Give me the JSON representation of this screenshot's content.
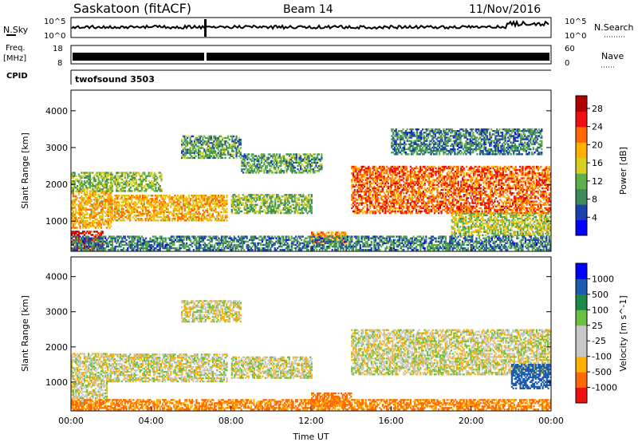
{
  "header": {
    "station": "Saskatoon (fitACF)",
    "beam": "Beam 14",
    "date": "11/Nov/2016"
  },
  "top_panels": {
    "nsky_label": "N.Sky",
    "nsky_ticks": [
      "10^5",
      "10^0"
    ],
    "nsearch_label": "N.Search",
    "nsearch_ticks_right": [
      "10^5",
      "10^0"
    ],
    "freq_label": "Freq.",
    "freq_unit": "[MHz]",
    "freq_ticks": [
      "18",
      "8"
    ],
    "nave_label": "Nave",
    "nave_ticks": [
      "60",
      "0"
    ],
    "cpid_label": "CPID",
    "cpid_value": "twofsound 3503"
  },
  "colors": {
    "power_scale": [
      "#0000ff",
      "#1c3fb0",
      "#3f8a5a",
      "#5fb04a",
      "#d8d020",
      "#ffb000",
      "#ff6a00",
      "#ee1010",
      "#b00000"
    ],
    "velocity_scale": [
      "#0000ff",
      "#1c5cb0",
      "#1e8a4a",
      "#6cc040",
      "#c8c8c8",
      "#c8c8c8",
      "#ffb000",
      "#ff6a00",
      "#ee1010"
    ]
  },
  "chart_data": [
    {
      "type": "heatmap",
      "title": "Power",
      "xlabel": "Time UT",
      "ylabel": "Slant Range [km]",
      "x_ticks": [
        "00:00",
        "04:00",
        "08:00",
        "12:00",
        "16:00",
        "20:00",
        "00:00"
      ],
      "y_ticks": [
        "1000",
        "2000",
        "3000",
        "4000"
      ],
      "ylim": [
        180,
        4560
      ],
      "xlim_hours": [
        0,
        24
      ],
      "colorbar_label": "Power [dB]",
      "colorbar_ticks": [
        "4",
        "8",
        "12",
        "16",
        "20",
        "24",
        "28"
      ],
      "colorbar_range": [
        0,
        30
      ],
      "regions": [
        {
          "t": [
            0.0,
            1.6
          ],
          "r": [
            200,
            700
          ],
          "value": 27
        },
        {
          "t": [
            0.0,
            2.0
          ],
          "r": [
            800,
            1800
          ],
          "value": 18
        },
        {
          "t": [
            0.0,
            4.5
          ],
          "r": [
            1800,
            2300
          ],
          "value": 12
        },
        {
          "t": [
            1.8,
            7.8
          ],
          "r": [
            1000,
            1700
          ],
          "value": 18
        },
        {
          "t": [
            5.5,
            8.5
          ],
          "r": [
            2700,
            3300
          ],
          "value": 10
        },
        {
          "t": [
            8.0,
            12.0
          ],
          "r": [
            1200,
            1700
          ],
          "value": 12
        },
        {
          "t": [
            8.5,
            12.5
          ],
          "r": [
            2300,
            2800
          ],
          "value": 10
        },
        {
          "t": [
            12.0,
            13.8
          ],
          "r": [
            400,
            700
          ],
          "value": 20
        },
        {
          "t": [
            14.0,
            24.0
          ],
          "r": [
            1200,
            2500
          ],
          "value": 22
        },
        {
          "t": [
            16.0,
            23.5
          ],
          "r": [
            2800,
            3500
          ],
          "value": 8
        },
        {
          "t": [
            19.0,
            24.0
          ],
          "r": [
            600,
            1200
          ],
          "value": 14
        },
        {
          "t": [
            0.0,
            24.0
          ],
          "r": [
            200,
            600
          ],
          "value": 8
        }
      ]
    },
    {
      "type": "heatmap",
      "title": "Velocity",
      "xlabel": "Time UT",
      "ylabel": "Slant Range [km]",
      "x_ticks": [
        "00:00",
        "04:00",
        "08:00",
        "12:00",
        "16:00",
        "20:00",
        "00:00"
      ],
      "y_ticks": [
        "1000",
        "2000",
        "3000",
        "4000"
      ],
      "ylim": [
        180,
        4560
      ],
      "xlim_hours": [
        0,
        24
      ],
      "colorbar_label": "Velocity [m s^-1]",
      "colorbar_ticks": [
        "1000",
        "500",
        "100",
        "25",
        "-25",
        "-100",
        "-500",
        "-1000"
      ],
      "regions": [
        {
          "t": [
            0.0,
            1.8
          ],
          "r": [
            300,
            1800
          ],
          "value": 0
        },
        {
          "t": [
            1.8,
            7.8
          ],
          "r": [
            1000,
            1800
          ],
          "value": 0
        },
        {
          "t": [
            5.5,
            8.5
          ],
          "r": [
            2700,
            3300
          ],
          "value": 0
        },
        {
          "t": [
            8.0,
            12.0
          ],
          "r": [
            1100,
            1700
          ],
          "value": 0
        },
        {
          "t": [
            14.0,
            24.0
          ],
          "r": [
            1200,
            2500
          ],
          "value": 0
        },
        {
          "t": [
            12.0,
            14.0
          ],
          "r": [
            300,
            700
          ],
          "value": -150
        },
        {
          "t": [
            0.0,
            24.0
          ],
          "r": [
            200,
            500
          ],
          "value": -120
        },
        {
          "t": [
            22.0,
            24.0
          ],
          "r": [
            800,
            1500
          ],
          "value": 200
        }
      ]
    }
  ]
}
